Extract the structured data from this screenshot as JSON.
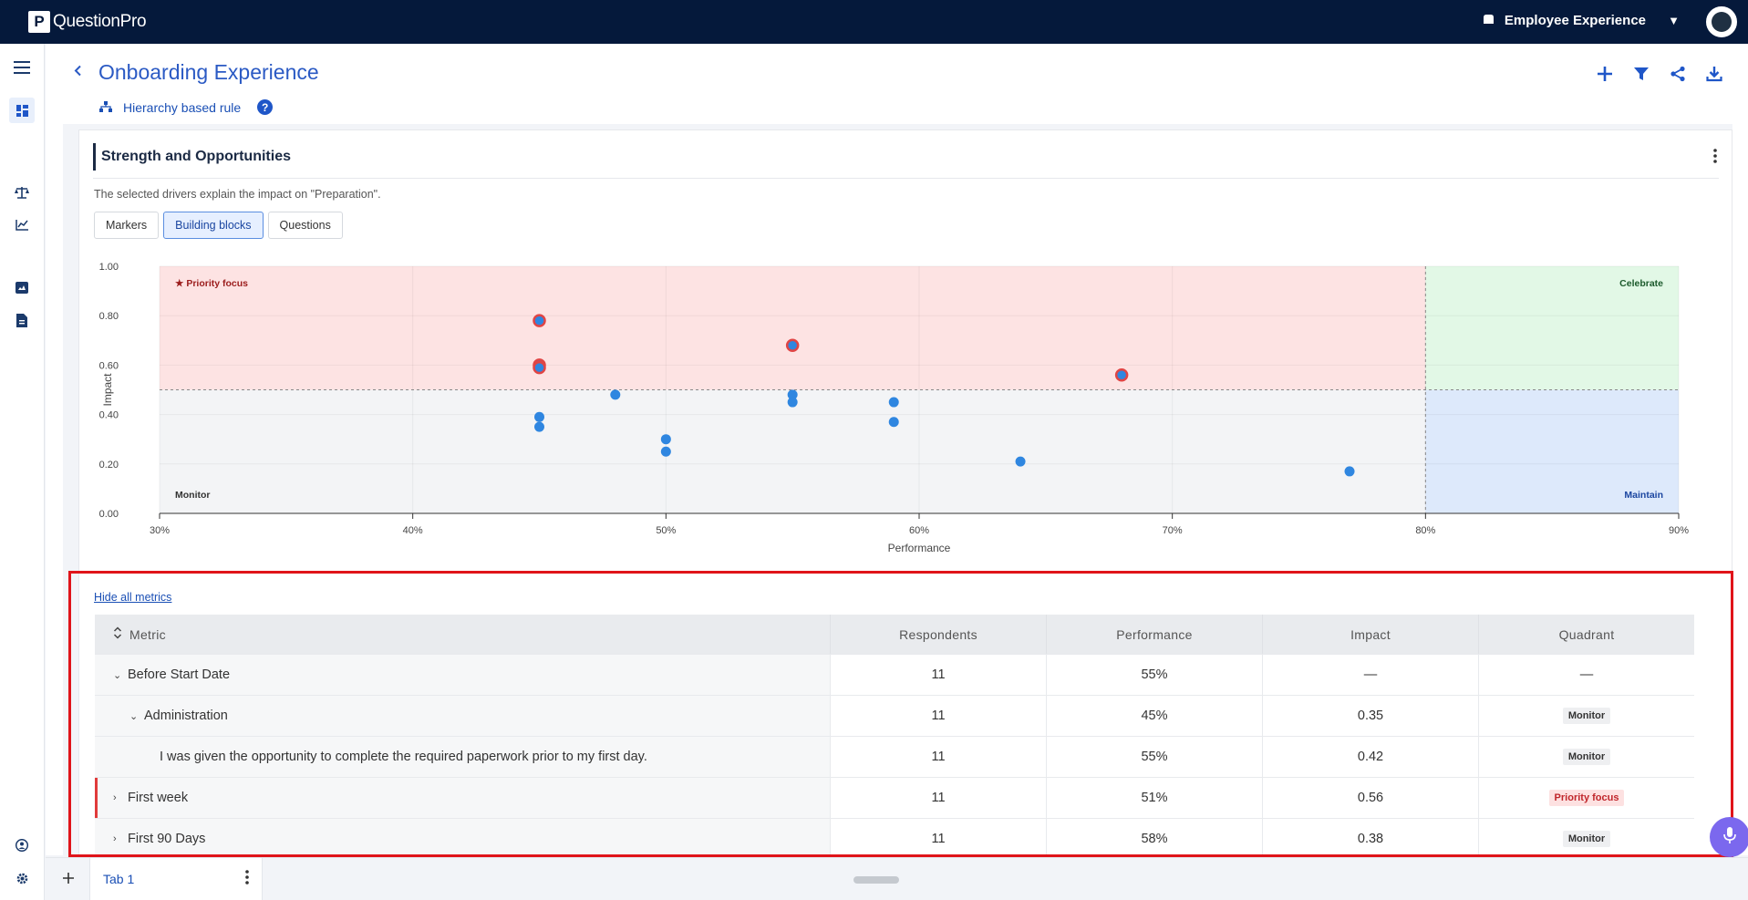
{
  "app": {
    "brand_mark": "P",
    "brand": "QuestionPro",
    "product": "Employee Experience",
    "caret": "▼"
  },
  "rail": {
    "icons": [
      "menu-icon",
      "dashboard-icon",
      "balance-icon",
      "trend-icon",
      "image-report-icon",
      "document-icon",
      "user-shield-icon",
      "gear-icon"
    ]
  },
  "header": {
    "back": "‹",
    "title": "Onboarding Experience",
    "rule": "Hierarchy based rule",
    "help": "?"
  },
  "actions": [
    "add-icon",
    "filter-icon",
    "share-icon",
    "download-icon"
  ],
  "card": {
    "title": "Strength and Opportunities",
    "description": "The selected drivers explain the impact on \"Preparation\".",
    "segments": [
      "Markers",
      "Building blocks",
      "Questions"
    ],
    "selected_segment": "Building blocks"
  },
  "chart_data": {
    "type": "scatter",
    "xlabel": "Performance",
    "ylabel": "Impact",
    "xlim": [
      30,
      90
    ],
    "ylim": [
      0,
      1
    ],
    "x_ticks": [
      "30%",
      "40%",
      "50%",
      "60%",
      "70%",
      "80%",
      "90%"
    ],
    "y_ticks": [
      "0.00",
      "0.20",
      "0.40",
      "0.60",
      "0.80",
      "1.00"
    ],
    "quadrant_labels": {
      "priority": "★ Priority focus",
      "celebrate": "Celebrate",
      "monitor": "Monitor",
      "maintain": "Maintain"
    },
    "thresholds": {
      "x": 80,
      "y": 0.5
    },
    "colors": {
      "priority_bg": "#fde3e3",
      "celebrate_bg": "#e2f8e6",
      "monitor_bg": "#f3f4f6",
      "maintain_bg": "#dde9fb",
      "point": "#2f86e0",
      "highlight": "#e04545"
    },
    "points": [
      {
        "x": 45,
        "y": 0.78,
        "highlight": true
      },
      {
        "x": 45,
        "y": 0.6,
        "highlight": true
      },
      {
        "x": 45,
        "y": 0.59,
        "highlight": true
      },
      {
        "x": 55,
        "y": 0.68,
        "highlight": true
      },
      {
        "x": 68,
        "y": 0.56,
        "highlight": true
      },
      {
        "x": 45,
        "y": 0.39
      },
      {
        "x": 45,
        "y": 0.35
      },
      {
        "x": 48,
        "y": 0.48
      },
      {
        "x": 50,
        "y": 0.3
      },
      {
        "x": 50,
        "y": 0.25
      },
      {
        "x": 55,
        "y": 0.48
      },
      {
        "x": 55,
        "y": 0.45
      },
      {
        "x": 59,
        "y": 0.45
      },
      {
        "x": 59,
        "y": 0.37
      },
      {
        "x": 64,
        "y": 0.21
      },
      {
        "x": 77,
        "y": 0.17
      }
    ]
  },
  "table": {
    "hide_link": "Hide all metrics",
    "columns": [
      "Metric",
      "Respondents",
      "Performance",
      "Impact",
      "Quadrant"
    ],
    "rows": [
      {
        "metric": "Before Start Date",
        "caret": "⌄",
        "respondents": "11",
        "performance": "55%",
        "impact": "—",
        "quadrant": "—"
      },
      {
        "metric": "Administration",
        "caret": "⌄",
        "respondents": "11",
        "performance": "45%",
        "impact": "0.35",
        "quadrant": "Monitor"
      },
      {
        "metric": "I was given the opportunity to complete the required paperwork prior to my first day.",
        "caret": "",
        "respondents": "11",
        "performance": "55%",
        "impact": "0.42",
        "quadrant": "Monitor"
      },
      {
        "metric": "First week",
        "caret": "›",
        "respondents": "11",
        "performance": "51%",
        "impact": "0.56",
        "quadrant": "Priority focus"
      },
      {
        "metric": "First 90 Days",
        "caret": "›",
        "respondents": "11",
        "performance": "58%",
        "impact": "0.38",
        "quadrant": "Monitor"
      }
    ]
  },
  "tabs": {
    "add": "+",
    "items": [
      "Tab 1"
    ]
  }
}
